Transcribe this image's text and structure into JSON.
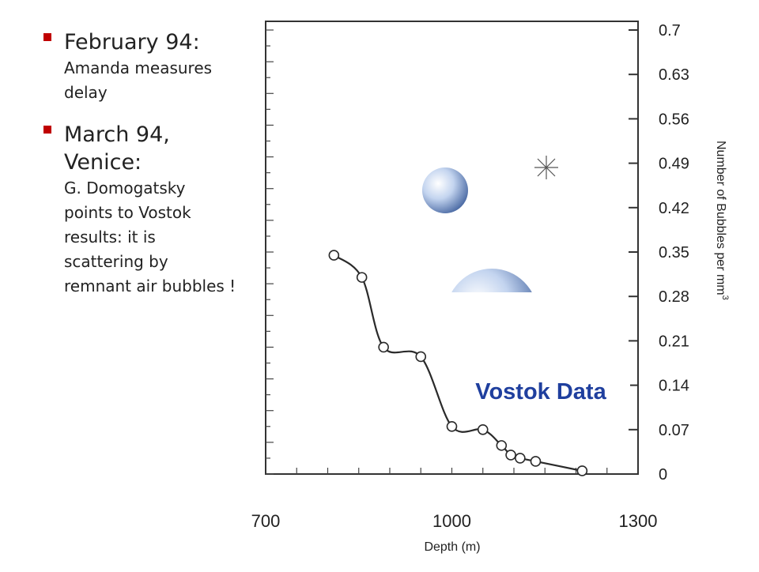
{
  "bullets": [
    {
      "head": "February 94:",
      "body": "Amanda measures delay"
    },
    {
      "head": "March 94, Venice:",
      "body": "G. Domogatsky points to Vostok results: it is scattering by remnant air bubbles !"
    }
  ],
  "overlay_label": "Vostok Data",
  "colors": {
    "bullet_marker": "#c00000",
    "overlay_label": "#1f3f9e",
    "curve": "#2a2a2a"
  },
  "chart_data": {
    "type": "line",
    "title": "",
    "xlabel": "Depth (m)",
    "ylabel": "Number of Bubbles per mm",
    "ylabel_sup": "3",
    "xlim": [
      700,
      1300
    ],
    "ylim": [
      0,
      0.7
    ],
    "xticks": [
      "700",
      "1000",
      "1300"
    ],
    "yticks": [
      "0.7",
      "0.63",
      "0.56",
      "0.49",
      "0.42",
      "0.35",
      "0.28",
      "0.21",
      "0.14",
      "0.07",
      "0"
    ],
    "series": [
      {
        "x": [
          810,
          855,
          890,
          950,
          1000,
          1050,
          1080,
          1095,
          1110,
          1135,
          1210
        ],
        "y": [
          0.345,
          0.31,
          0.2,
          0.185,
          0.075,
          0.07,
          0.045,
          0.03,
          0.025,
          0.02,
          0.005
        ]
      }
    ]
  }
}
